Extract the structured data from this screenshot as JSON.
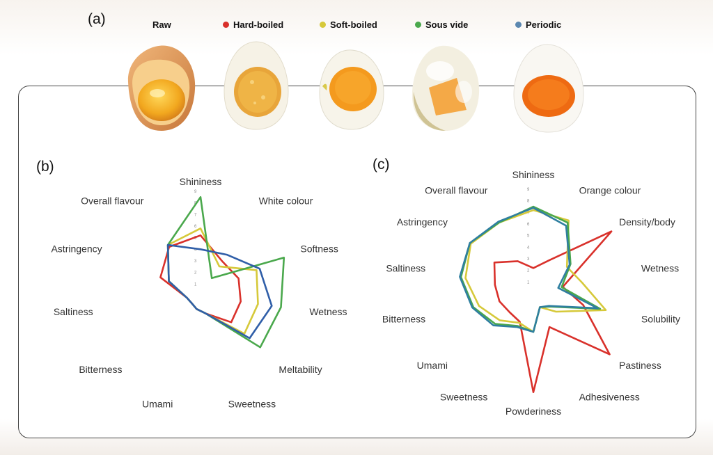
{
  "panel_labels": {
    "a": "(a)",
    "b": "(b)",
    "c": "(c)"
  },
  "legend": [
    {
      "label": "Raw",
      "color": ""
    },
    {
      "label": "Hard-boiled",
      "color": "#d9312b"
    },
    {
      "label": "Soft-boiled",
      "color": "#d6c93a"
    },
    {
      "label": "Sous vide",
      "color": "#4aa84c"
    },
    {
      "label": "Periodic",
      "color": "#5b88b0"
    }
  ],
  "eggs": [
    {
      "name": "Raw",
      "icon": "raw-egg-icon"
    },
    {
      "name": "Hard-boiled",
      "icon": "hard-boiled-egg-icon"
    },
    {
      "name": "Soft-boiled",
      "icon": "soft-boiled-egg-icon"
    },
    {
      "name": "Sous vide",
      "icon": "sous-vide-egg-icon"
    },
    {
      "name": "Periodic",
      "icon": "periodic-egg-icon"
    }
  ],
  "chart_data": [
    {
      "type": "radar",
      "panel": "(b)",
      "axes": [
        "Shininess",
        "White colour",
        "Softness",
        "Wetness",
        "Meltability",
        "Sweetness",
        "Umami",
        "Bitterness",
        "Saltiness",
        "Astringency",
        "Overall flavour"
      ],
      "scale": [
        0,
        9
      ],
      "ticks": [
        "1",
        "2",
        "3",
        "4",
        "5",
        "6",
        "7",
        "8",
        "9"
      ],
      "series": [
        {
          "name": "Hard-boiled",
          "color": "#d9312b",
          "values": [
            5.2,
            3.5,
            3.6,
            3.5,
            3.5,
            1.6,
            1.2,
            1.0,
            1.2,
            3.8,
            5.0
          ]
        },
        {
          "name": "Soft-boiled",
          "color": "#d6c93a",
          "values": [
            5.8,
            3.0,
            5.3,
            5.0,
            5.0,
            1.6,
            1.2,
            1.0,
            1.2,
            3.0,
            5.2
          ]
        },
        {
          "name": "Sous vide",
          "color": "#4aa84c",
          "values": [
            8.5,
            1.8,
            7.9,
            7.0,
            6.8,
            1.6,
            1.2,
            1.0,
            1.2,
            3.0,
            5.2
          ]
        },
        {
          "name": "Periodic",
          "color": "#2f5ea8",
          "values": [
            4.0,
            4.2,
            5.6,
            6.2,
            5.6,
            1.6,
            1.2,
            1.0,
            1.2,
            3.0,
            5.2
          ]
        }
      ]
    },
    {
      "type": "radar",
      "panel": "(c)",
      "axes": [
        "Shininess",
        "Orange colour",
        "Density/body",
        "Wetness",
        "Solubility",
        "Pastiness",
        "Adhesiveness",
        "Powderiness",
        "Sweetness",
        "Umami",
        "Bitterness",
        "Saltiness",
        "Astringency",
        "Overall flavour"
      ],
      "scale": [
        0,
        9
      ],
      "ticks": [
        "1",
        "2",
        "3",
        "4",
        "5",
        "6",
        "7",
        "8",
        "9"
      ],
      "series": [
        {
          "name": "Hard-boiled",
          "color": "#d9312b",
          "values": [
            2.2,
            3.2,
            8.6,
            2.6,
            4.4,
            8.4,
            3.2,
            8.5,
            2.7,
            2.6,
            3.0,
            3.4,
            4.3,
            3.1
          ]
        },
        {
          "name": "Soft-boiled",
          "color": "#d6c93a",
          "values": [
            7.2,
            7.0,
            3.7,
            4.3,
            6.4,
            2.5,
            1.3,
            3.3,
            2.8,
            3.7,
            4.8,
            6.0,
            6.9,
            6.8
          ]
        },
        {
          "name": "Sous vide",
          "color": "#4aa84c",
          "values": [
            7.5,
            6.8,
            4.1,
            2.5,
            5.9,
            1.8,
            1.3,
            3.3,
            3.1,
            4.2,
            5.3,
            6.4,
            7.0,
            6.8
          ]
        },
        {
          "name": "Periodic",
          "color": "#2f7fa0",
          "values": [
            7.4,
            6.5,
            4.0,
            2.2,
            5.7,
            1.7,
            1.3,
            3.3,
            3.2,
            4.4,
            5.4,
            6.5,
            7.0,
            6.9
          ]
        }
      ]
    }
  ]
}
